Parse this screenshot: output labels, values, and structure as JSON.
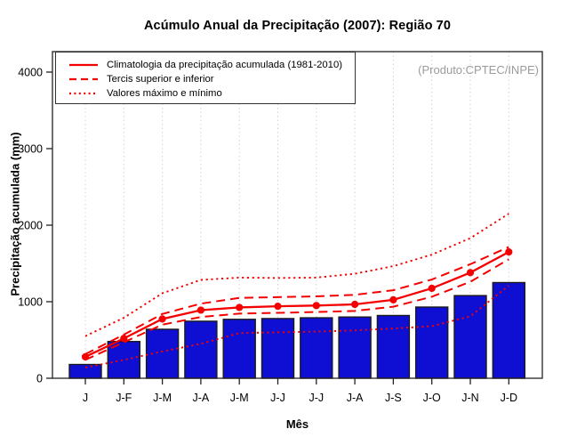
{
  "produto_label": "(Produto:CPTEC/INPE)",
  "legend": {
    "items": [
      {
        "label": "Climatologia da precipitação acumulada (1981-2010)",
        "style": "solid"
      },
      {
        "label": "Tercis superior e inferior",
        "style": "dashed"
      },
      {
        "label": "Valores máximo e mínimo",
        "style": "dotted"
      }
    ]
  },
  "chart_data": {
    "type": "bar",
    "title": "Acúmulo Anual da Precipitação (2007): Região 70",
    "xlabel": "Mês",
    "ylabel": "Precipitação acumulada (mm)",
    "categories": [
      "J",
      "J-F",
      "J-M",
      "J-A",
      "J-M",
      "J-J",
      "J-J",
      "J-A",
      "J-S",
      "J-O",
      "J-N",
      "J-D"
    ],
    "bar_series": {
      "description": "Precipitação acumulada 2007 (barras azuis)",
      "values": [
        180,
        480,
        640,
        745,
        770,
        780,
        790,
        800,
        820,
        930,
        1080,
        1250
      ]
    },
    "line_series": [
      {
        "name": "Climatologia da precipitação acumulada (1981-2010)",
        "style": "solid",
        "markers": true,
        "values": [
          280,
          520,
          775,
          890,
          925,
          940,
          950,
          965,
          1025,
          1175,
          1380,
          1650
        ]
      },
      {
        "name": "Tercis superior e inferior",
        "style": "dashed",
        "values_superior": [
          315,
          570,
          840,
          975,
          1050,
          1060,
          1070,
          1090,
          1150,
          1290,
          1490,
          1715
        ],
        "values_inferior": [
          240,
          470,
          700,
          800,
          845,
          855,
          865,
          880,
          935,
          1065,
          1260,
          1555
        ]
      },
      {
        "name": "Valores máximo e mínimo",
        "style": "dotted",
        "values_maximo": [
          550,
          790,
          1110,
          1285,
          1315,
          1310,
          1315,
          1365,
          1465,
          1615,
          1830,
          2150
        ],
        "values_minimo": [
          140,
          240,
          350,
          450,
          590,
          600,
          610,
          625,
          650,
          680,
          810,
          1210
        ]
      }
    ],
    "yticks": [
      0,
      1000,
      2000,
      3000,
      4000
    ],
    "ylim": [
      0,
      4270
    ],
    "grid": "vertical-dotted",
    "legend_position": "top-left",
    "colors": {
      "bar": "#0f0fd4",
      "bar_border": "#1a1a1a",
      "line": "#f40000",
      "grid": "#d2d2d2",
      "axis": "#222222",
      "produto_text": "#9b9b9b"
    }
  }
}
